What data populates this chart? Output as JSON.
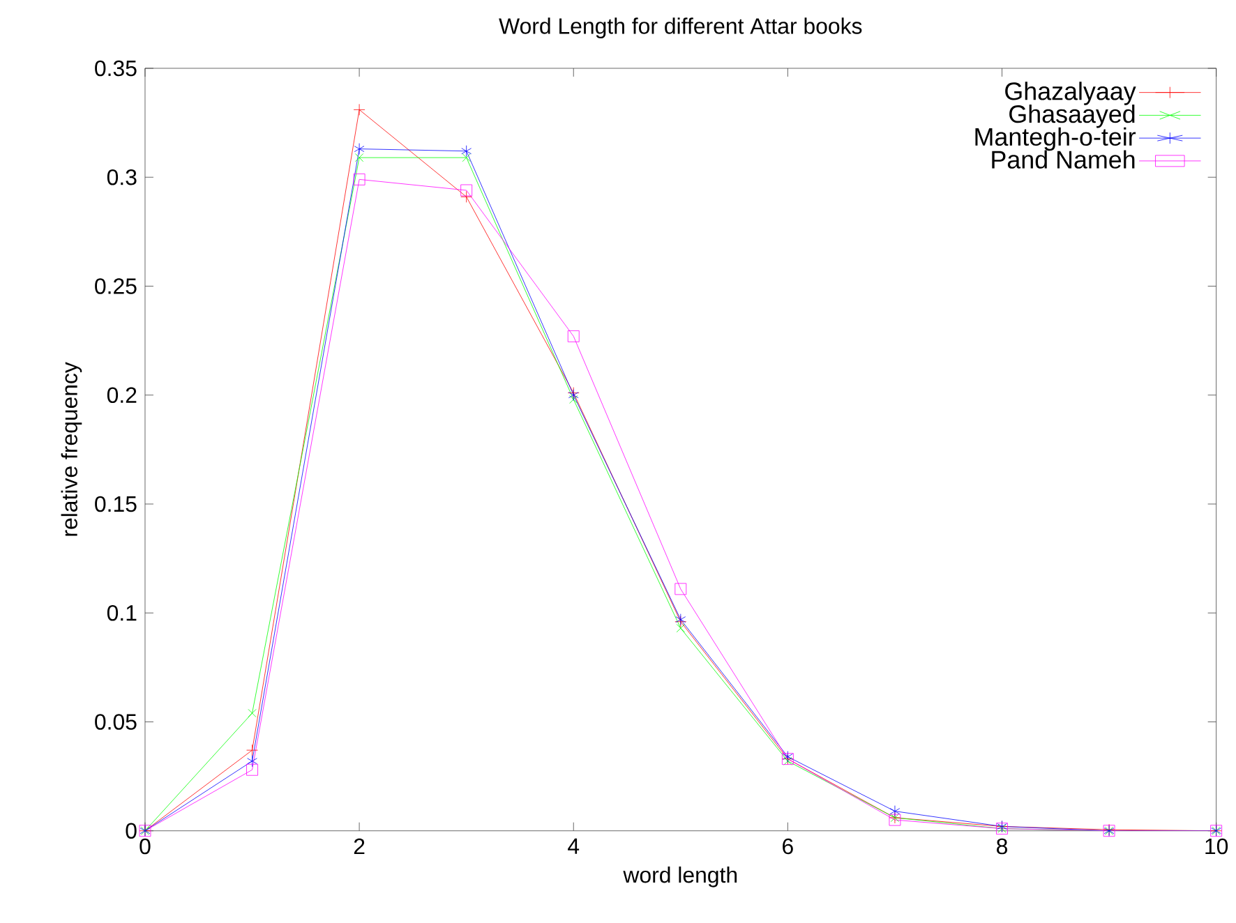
{
  "chart_data": {
    "type": "line",
    "title": "Word Length for different Attar books",
    "xlabel": "word length",
    "ylabel": "relative frequency",
    "x": [
      0,
      1,
      2,
      3,
      4,
      5,
      6,
      7,
      8,
      9,
      10
    ],
    "series": [
      {
        "name": "Ghazalyaay",
        "color": "#ff0000",
        "marker": "cross",
        "values": [
          0,
          0.037,
          0.331,
          0.291,
          0.201,
          0.096,
          0.033,
          0.006,
          0.002,
          0.0005,
          0
        ]
      },
      {
        "name": "Ghasaayed",
        "color": "#00ff00",
        "marker": "cross",
        "values": [
          0,
          0.054,
          0.309,
          0.309,
          0.198,
          0.093,
          0.032,
          0.006,
          0.001,
          0,
          0
        ]
      },
      {
        "name": "Mantegh-o-teir",
        "color": "#0000ff",
        "marker": "cross",
        "values": [
          0,
          0.032,
          0.313,
          0.312,
          0.2,
          0.097,
          0.034,
          0.009,
          0.002,
          0,
          0
        ]
      },
      {
        "name": "Pand Nameh",
        "color": "#ff00ff",
        "marker": "square",
        "values": [
          0,
          0.028,
          0.299,
          0.294,
          0.227,
          0.111,
          0.033,
          0.005,
          0.001,
          0,
          0
        ]
      }
    ],
    "xlim": [
      0,
      10
    ],
    "ylim": [
      0,
      0.35
    ],
    "xticks": [
      0,
      2,
      4,
      6,
      8,
      10
    ],
    "yticks": [
      0,
      0.05,
      0.1,
      0.15,
      0.2,
      0.25,
      0.3,
      0.35
    ],
    "legend": "top right",
    "grid": false,
    "line_style": "solid"
  }
}
